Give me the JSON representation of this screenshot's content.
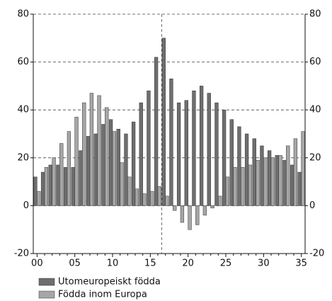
{
  "chart_data": {
    "type": "bar",
    "categories": [
      "00",
      null,
      null,
      null,
      null,
      "05",
      null,
      null,
      null,
      null,
      "10",
      null,
      null,
      null,
      null,
      "15",
      null,
      null,
      null,
      null,
      "20",
      null,
      null,
      null,
      null,
      "25",
      null,
      null,
      null,
      null,
      "30",
      null,
      null,
      null,
      null,
      "35"
    ],
    "series": [
      {
        "name": "Utomeuropeiskt födda",
        "color": "#6e6e6e",
        "values": [
          12,
          14,
          17,
          17,
          16,
          16,
          23,
          29,
          30,
          34,
          36,
          32,
          30,
          35,
          43,
          48,
          62,
          70,
          53,
          43,
          44,
          48,
          50,
          47,
          43,
          40,
          36,
          33,
          30,
          28,
          25,
          23,
          21,
          19,
          17,
          14
        ]
      },
      {
        "name": "Födda inom Europa",
        "color": "#a6a6a6",
        "values": [
          6,
          16,
          20,
          26,
          31,
          37,
          43,
          47,
          46,
          41,
          31,
          18,
          12,
          7,
          5,
          6,
          8,
          4,
          -2,
          -7,
          -10,
          -8,
          -4,
          -1,
          4,
          12,
          16,
          16,
          17,
          19,
          20,
          20,
          21,
          25,
          28,
          31
        ]
      }
    ],
    "ylim": [
      -20,
      80
    ],
    "yticks": [
      -20,
      0,
      20,
      40,
      60,
      80
    ],
    "y2lim": [
      -20,
      80
    ],
    "y2ticks": [
      -20,
      0,
      20,
      40,
      60,
      80
    ],
    "grid": true
  }
}
